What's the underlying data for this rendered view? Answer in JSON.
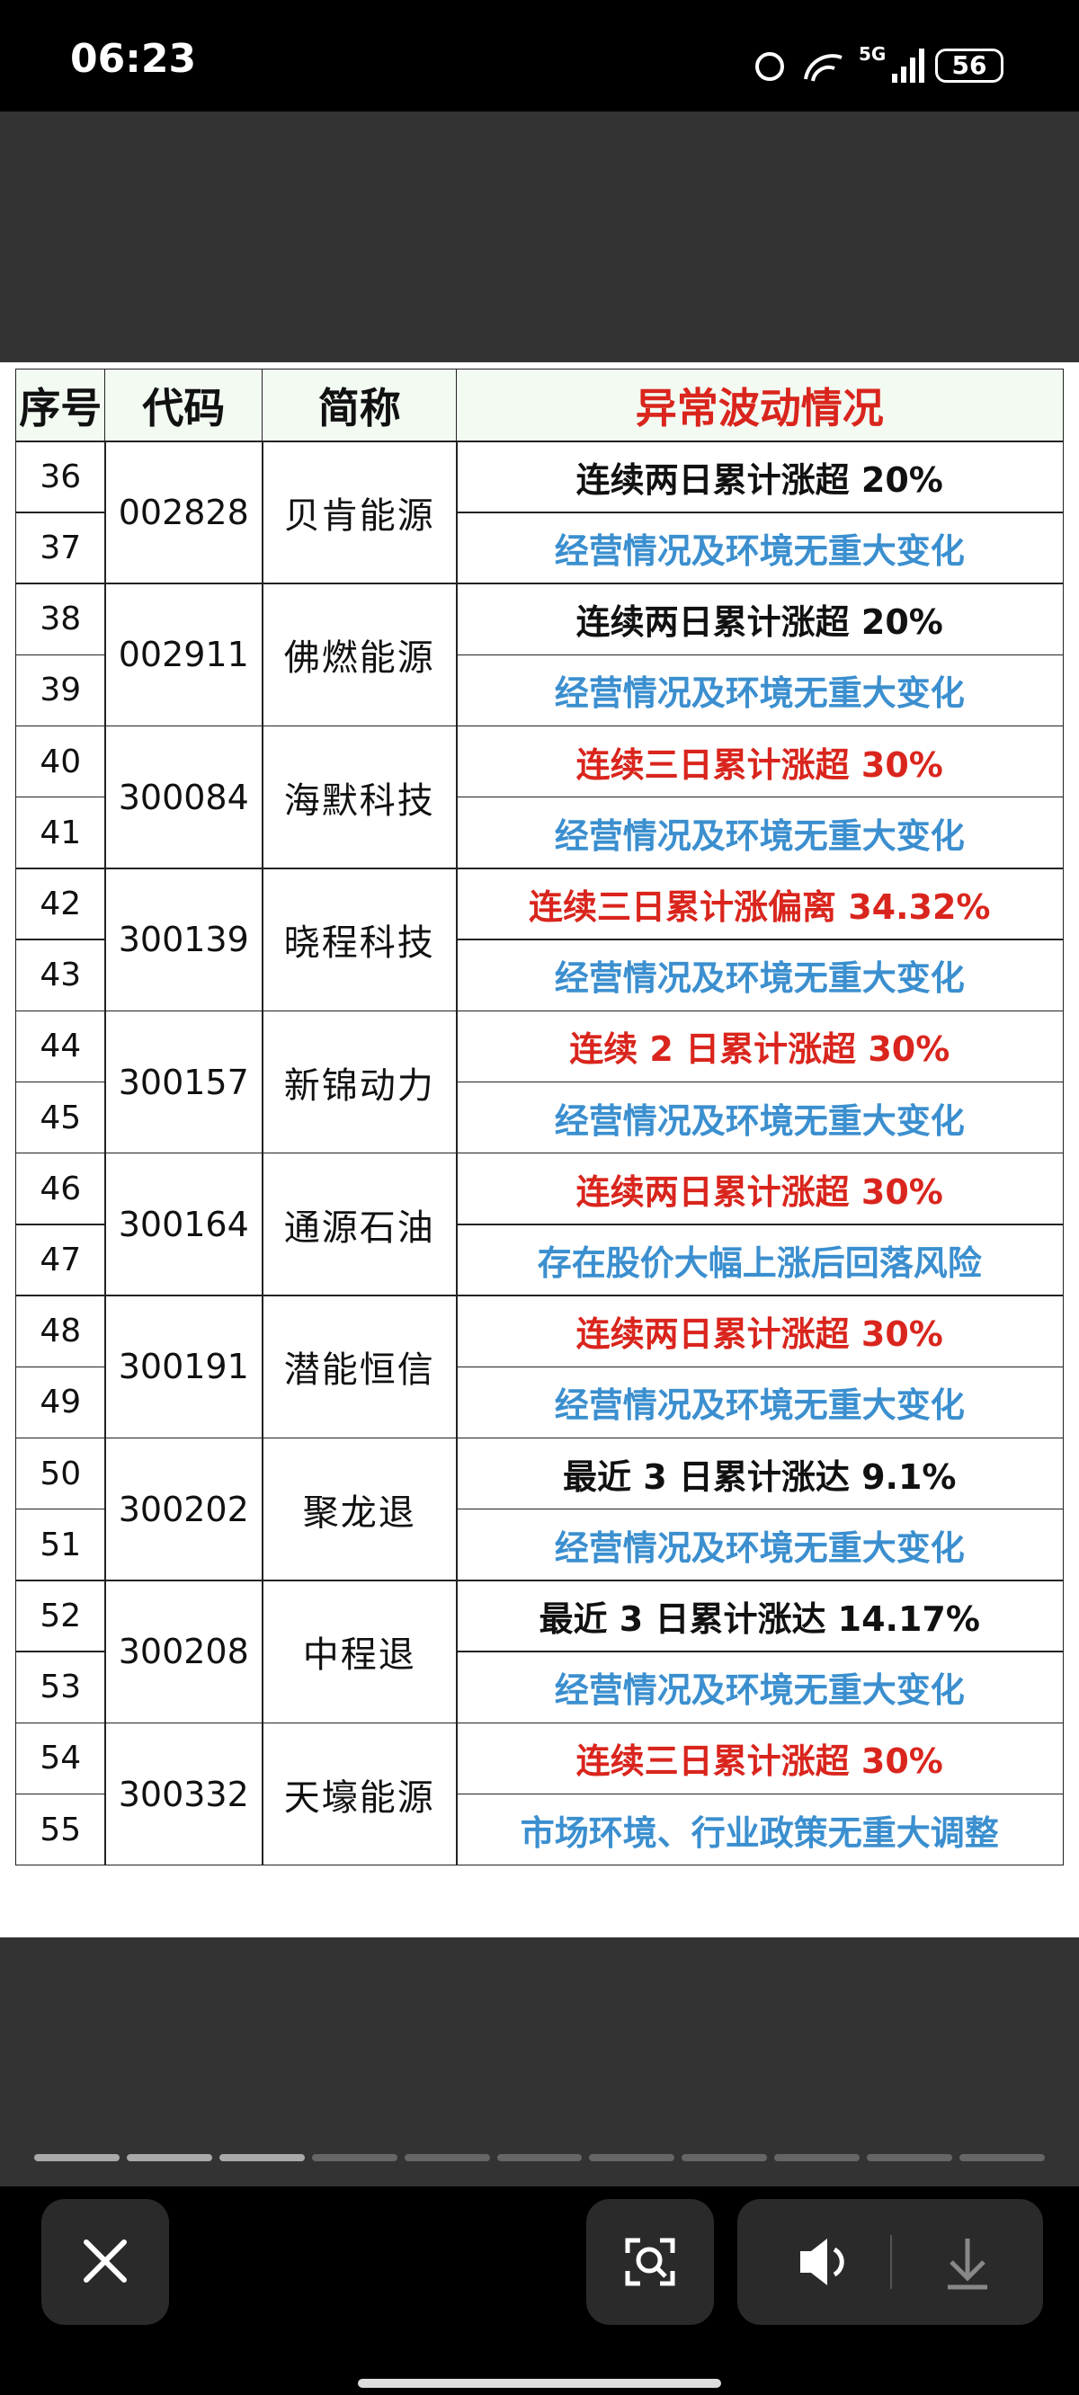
{
  "status_bar": {
    "time": "06:23",
    "network": "5G",
    "battery": "56"
  },
  "table": {
    "header": [
      "序号",
      "代码",
      "简称",
      "异常波动情况"
    ],
    "header_color": "#d9251d",
    "groups": [
      {
        "seq": [
          "36",
          "37"
        ],
        "code": "002828",
        "name": "贝肯能源",
        "lines": [
          {
            "text": "连续两日累计涨超 20%",
            "color": "#111111"
          },
          {
            "text": "经营情况及环境无重大变化",
            "color": "#3b8fcf"
          }
        ]
      },
      {
        "seq": [
          "38",
          "39"
        ],
        "code": "002911",
        "name": "佛燃能源",
        "lines": [
          {
            "text": "连续两日累计涨超 20%",
            "color": "#111111"
          },
          {
            "text": "经营情况及环境无重大变化",
            "color": "#3b8fcf"
          }
        ]
      },
      {
        "seq": [
          "40",
          "41"
        ],
        "code": "300084",
        "name": "海默科技",
        "lines": [
          {
            "text": "连续三日累计涨超 30%",
            "color": "#d9251d"
          },
          {
            "text": "经营情况及环境无重大变化",
            "color": "#3b8fcf"
          }
        ]
      },
      {
        "seq": [
          "42",
          "43"
        ],
        "code": "300139",
        "name": "晓程科技",
        "lines": [
          {
            "text": "连续三日累计涨偏离 34.32%",
            "color": "#d9251d"
          },
          {
            "text": "经营情况及环境无重大变化",
            "color": "#3b8fcf"
          }
        ]
      },
      {
        "seq": [
          "44",
          "45"
        ],
        "code": "300157",
        "name": "新锦动力",
        "lines": [
          {
            "text": "连续 2 日累计涨超 30%",
            "color": "#d9251d"
          },
          {
            "text": "经营情况及环境无重大变化",
            "color": "#3b8fcf"
          }
        ]
      },
      {
        "seq": [
          "46",
          "47"
        ],
        "code": "300164",
        "name": "通源石油",
        "lines": [
          {
            "text": "连续两日累计涨超 30%",
            "color": "#d9251d"
          },
          {
            "text": "存在股价大幅上涨后回落风险",
            "color": "#3b8fcf"
          }
        ]
      },
      {
        "seq": [
          "48",
          "49"
        ],
        "code": "300191",
        "name": "潜能恒信",
        "lines": [
          {
            "text": "连续两日累计涨超 30%",
            "color": "#d9251d"
          },
          {
            "text": "经营情况及环境无重大变化",
            "color": "#3b8fcf"
          }
        ]
      },
      {
        "seq": [
          "50",
          "51"
        ],
        "code": "300202",
        "name": "聚龙退",
        "lines": [
          {
            "text": "最近 3 日累计涨达 9.1%",
            "color": "#111111"
          },
          {
            "text": "经营情况及环境无重大变化",
            "color": "#3b8fcf"
          }
        ]
      },
      {
        "seq": [
          "52",
          "53"
        ],
        "code": "300208",
        "name": "中程退",
        "lines": [
          {
            "text": "最近 3 日累计涨达 14.17%",
            "color": "#111111"
          },
          {
            "text": "经营情况及环境无重大变化",
            "color": "#3b8fcf"
          }
        ]
      },
      {
        "seq": [
          "54",
          "55"
        ],
        "code": "300332",
        "name": "天壕能源",
        "lines": [
          {
            "text": "连续三日累计涨超 30%",
            "color": "#d9251d"
          },
          {
            "text": "市场环境、行业政策无重大调整",
            "color": "#3b8fcf"
          }
        ]
      }
    ]
  }
}
